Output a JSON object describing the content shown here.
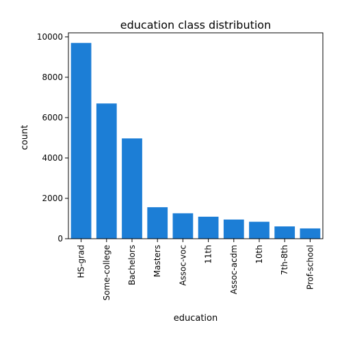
{
  "chart_data": {
    "type": "bar",
    "title": "education class distribution",
    "xlabel": "education",
    "ylabel": "count",
    "categories": [
      "HS-grad",
      "Some-college",
      "Bachelors",
      "Masters",
      "Assoc-voc",
      "11th",
      "Assoc-acdm",
      "10th",
      "7th-8th",
      "Prof-school"
    ],
    "values": [
      9700,
      6700,
      4970,
      1560,
      1260,
      1090,
      950,
      840,
      610,
      510
    ],
    "ylim": [
      0,
      10200
    ],
    "yticks": [
      0,
      2000,
      4000,
      6000,
      8000,
      10000
    ],
    "ytick_labels": [
      "0",
      "2000",
      "4000",
      "6000",
      "8000",
      "10000"
    ],
    "grid": false,
    "colors": {
      "bar": "#1c7ed6"
    }
  }
}
